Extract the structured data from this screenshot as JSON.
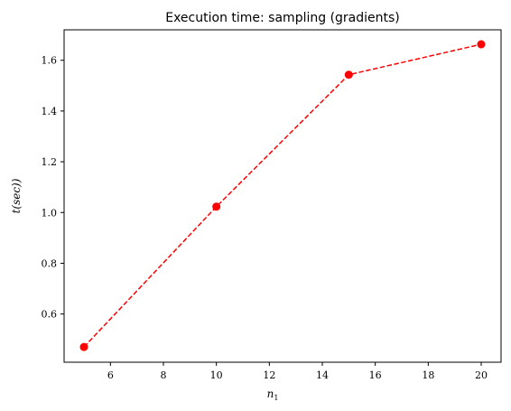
{
  "chart_data": {
    "type": "line",
    "title": "Execution time: sampling (gradients)",
    "xlabel": "n",
    "xlabel_subscript": "1",
    "ylabel": "t(sec))",
    "xlim": [
      4.25,
      20.75
    ],
    "ylim": [
      0.41,
      1.72
    ],
    "xticks": [
      6,
      8,
      10,
      12,
      14,
      16,
      18,
      20
    ],
    "yticks": [
      0.6,
      0.8,
      1.0,
      1.2,
      1.4,
      1.6
    ],
    "xtick_labels": [
      "6",
      "8",
      "10",
      "12",
      "14",
      "16",
      "18",
      "20"
    ],
    "ytick_labels": [
      "0.6",
      "0.8",
      "1.0",
      "1.2",
      "1.4",
      "1.6"
    ],
    "grid": false,
    "series": [
      {
        "x": [
          5,
          10,
          15,
          20
        ],
        "y": [
          0.47,
          1.023,
          1.543,
          1.663
        ],
        "color": "#ff0000",
        "linestyle": "dashed",
        "marker": "circle"
      }
    ]
  }
}
